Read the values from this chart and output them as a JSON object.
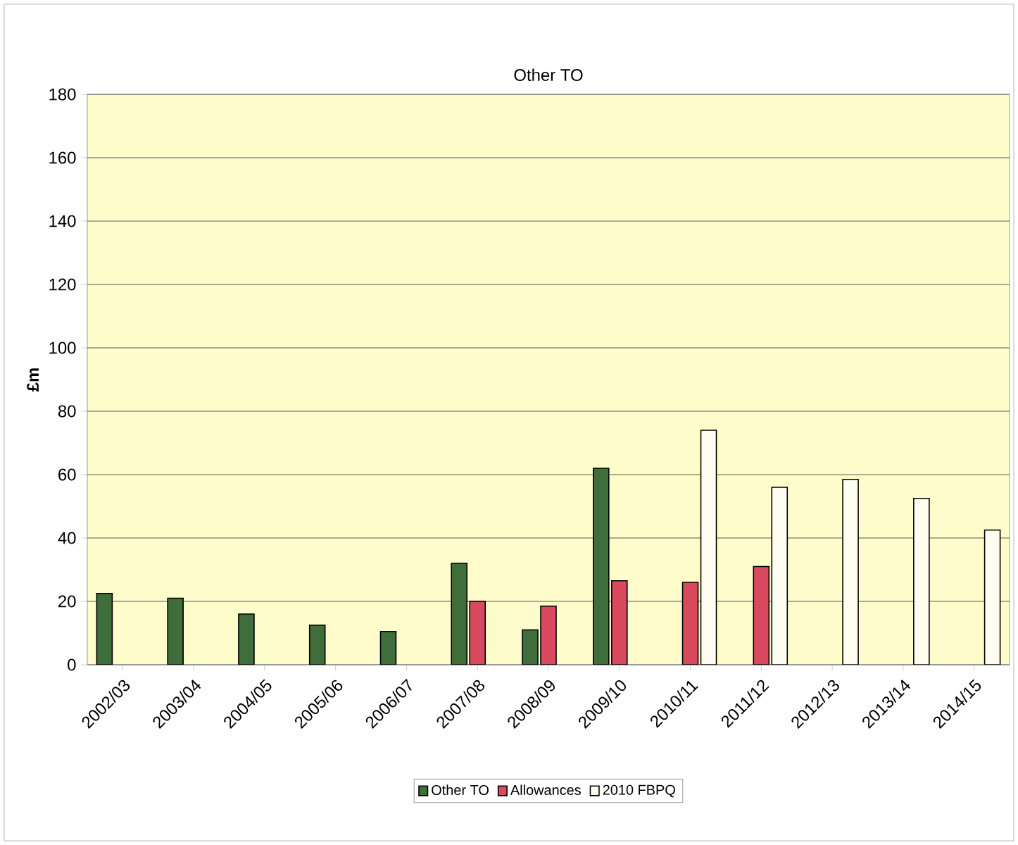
{
  "chart_data": {
    "type": "bar",
    "title": "Other TO",
    "ylabel": "£m",
    "categories": [
      "2002/03",
      "2003/04",
      "2004/05",
      "2005/06",
      "2006/07",
      "2007/08",
      "2008/09",
      "2009/10",
      "2010/11",
      "2011/12",
      "2012/13",
      "2013/14",
      "2014/15"
    ],
    "series": [
      {
        "name": "Other TO",
        "color": "#3f6e3a",
        "values": [
          22.5,
          21,
          16,
          12.5,
          10.5,
          32,
          11,
          62,
          null,
          null,
          null,
          null,
          null
        ]
      },
      {
        "name": "Allowances",
        "color": "#d94a5f",
        "values": [
          null,
          null,
          null,
          null,
          null,
          20,
          18.5,
          26.5,
          26,
          31,
          null,
          null,
          null
        ]
      },
      {
        "name": "2010 FBPQ",
        "color": "#fffdf0",
        "values": [
          null,
          null,
          null,
          null,
          null,
          null,
          null,
          null,
          74,
          56,
          58.5,
          52.5,
          42.5
        ]
      }
    ],
    "ylim": [
      0,
      180
    ],
    "yticks": [
      0,
      20,
      40,
      60,
      80,
      100,
      120,
      140,
      160,
      180
    ],
    "grid": "y",
    "legend": "bottom"
  }
}
